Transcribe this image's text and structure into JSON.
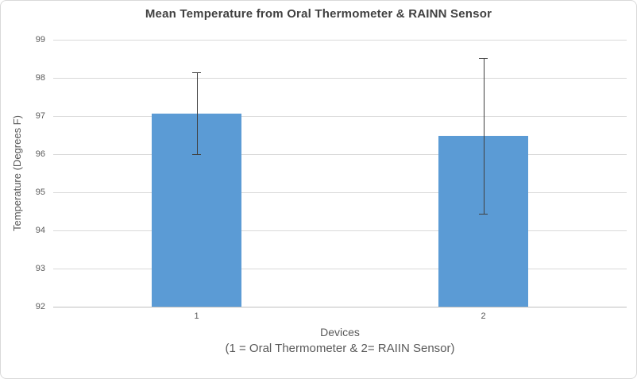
{
  "chart_data": {
    "type": "bar",
    "title": "Mean Temperature from Oral Thermometer & RAINN Sensor",
    "categories": [
      "1",
      "2"
    ],
    "values": [
      97.07,
      96.48
    ],
    "error_bars": {
      "upper": [
        98.15,
        98.53
      ],
      "lower": [
        96.0,
        94.44
      ]
    },
    "xlabel": "Devices",
    "xlabel_note": "(1 = Oral Thermometer & 2= RAIIN Sensor)",
    "ylabel": "Temperature (Degrees F)",
    "ylim": [
      92,
      99
    ],
    "yticks": [
      92,
      93,
      94,
      95,
      96,
      97,
      98,
      99
    ],
    "grid": true,
    "legend": "none"
  },
  "colors": {
    "bar_fill": "#5B9BD5",
    "error_bar": "#404040",
    "title_text": "#404040",
    "axis_text": "#595959",
    "gridline": "#D9D9D9",
    "axis_line": "#BFBFBF",
    "chart_border": "#D9D9D9",
    "background": "#FFFFFF"
  }
}
